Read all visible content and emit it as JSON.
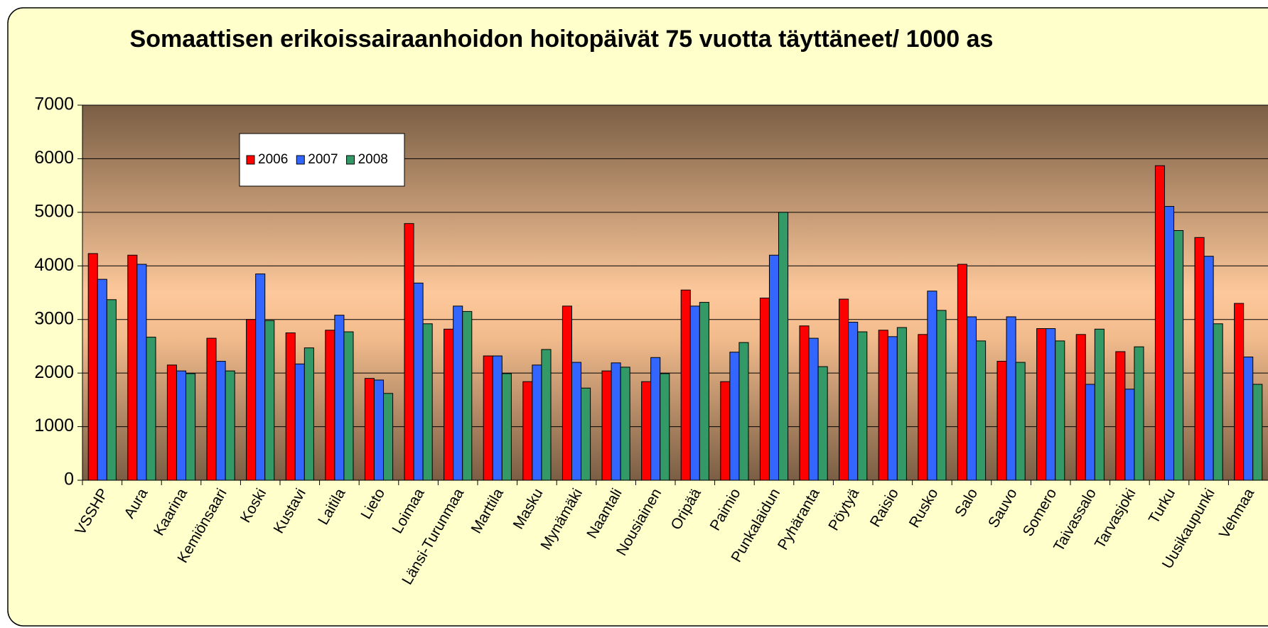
{
  "chart_data": {
    "type": "bar",
    "title": "Somaattisen erikoissairaanhoidon hoitopäivät 75 vuotta täyttäneet/ 1000 as",
    "categories": [
      "VSSHP",
      "Aura",
      "Kaarina",
      "Kemiönsaari",
      "Koski",
      "Kustavi",
      "Laitila",
      "Lieto",
      "Loimaa",
      "Länsi-Turunmaa",
      "Marttila",
      "Masku",
      "Mynämäki",
      "Naantali",
      "Nousiainen",
      "Oripää",
      "Paimio",
      "Punkalaidun",
      "Pyhäranta",
      "Pöytyä",
      "Raisio",
      "Rusko",
      "Salo",
      "Sauvo",
      "Somero",
      "Taivassalo",
      "Tarvasjoki",
      "Turku",
      "Uusikaupunki",
      "Vehmaa"
    ],
    "series": [
      {
        "name": "2006",
        "color": "#ff0000",
        "values": [
          4230,
          4200,
          2150,
          2650,
          3000,
          2750,
          2800,
          1900,
          4790,
          2820,
          2320,
          1840,
          3250,
          2040,
          1840,
          3550,
          1840,
          3400,
          2880,
          3380,
          2800,
          2720,
          4030,
          2220,
          2830,
          2720,
          2400,
          5870,
          4530,
          3300
        ]
      },
      {
        "name": "2007",
        "color": "#3366ff",
        "values": [
          3750,
          4030,
          2040,
          2220,
          3850,
          2170,
          3080,
          1870,
          3680,
          3250,
          2320,
          2150,
          2200,
          2190,
          2290,
          3250,
          2390,
          4200,
          2650,
          2950,
          2680,
          3530,
          3050,
          3050,
          2830,
          1790,
          1700,
          5110,
          4180,
          2300
        ]
      },
      {
        "name": "2008",
        "color": "#339966",
        "values": [
          3370,
          2670,
          1990,
          2040,
          2980,
          2470,
          2770,
          1620,
          2920,
          3150,
          1990,
          2440,
          1720,
          2110,
          1990,
          3320,
          2570,
          5000,
          2120,
          2770,
          2850,
          3170,
          2600,
          2200,
          2600,
          2820,
          2490,
          4660,
          2920,
          1790
        ]
      }
    ],
    "ylim": [
      0,
      7000
    ],
    "yticks": [
      0,
      1000,
      2000,
      3000,
      4000,
      5000,
      6000,
      7000
    ],
    "grid": true,
    "legend": "upper left"
  }
}
